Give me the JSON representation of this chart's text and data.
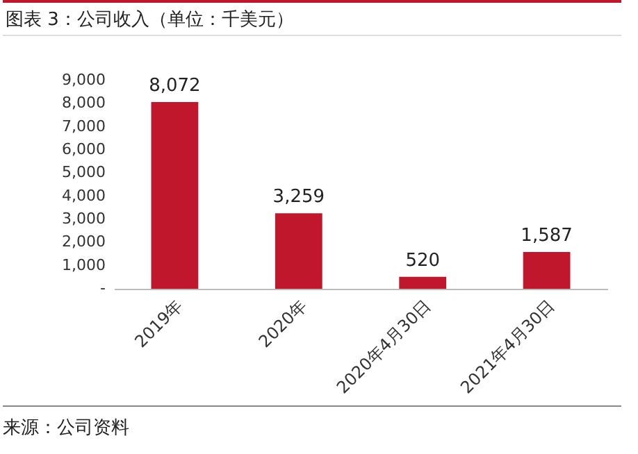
{
  "chart_data": {
    "type": "bar",
    "title": "图表 3：公司收入（单位：千美元）",
    "categories": [
      "2019年",
      "2020年",
      "2020年4月30日",
      "2021年4月30日"
    ],
    "values": [
      8072,
      3259,
      520,
      1587
    ],
    "value_labels": [
      "8,072",
      "3,259",
      "520",
      "1,587"
    ],
    "color": "#c0172d",
    "ylim": [
      0,
      9000
    ],
    "yticks": [
      {
        "value": 0,
        "label": "-"
      },
      {
        "value": 1000,
        "label": "1,000"
      },
      {
        "value": 2000,
        "label": "2,000"
      },
      {
        "value": 3000,
        "label": "3,000"
      },
      {
        "value": 4000,
        "label": "4,000"
      },
      {
        "value": 5000,
        "label": "5,000"
      },
      {
        "value": 6000,
        "label": "6,000"
      },
      {
        "value": 7000,
        "label": "7,000"
      },
      {
        "value": 8000,
        "label": "8,000"
      },
      {
        "value": 9000,
        "label": "9,000"
      }
    ],
    "grid": false,
    "annotations": [
      "来源：公司资料"
    ]
  }
}
